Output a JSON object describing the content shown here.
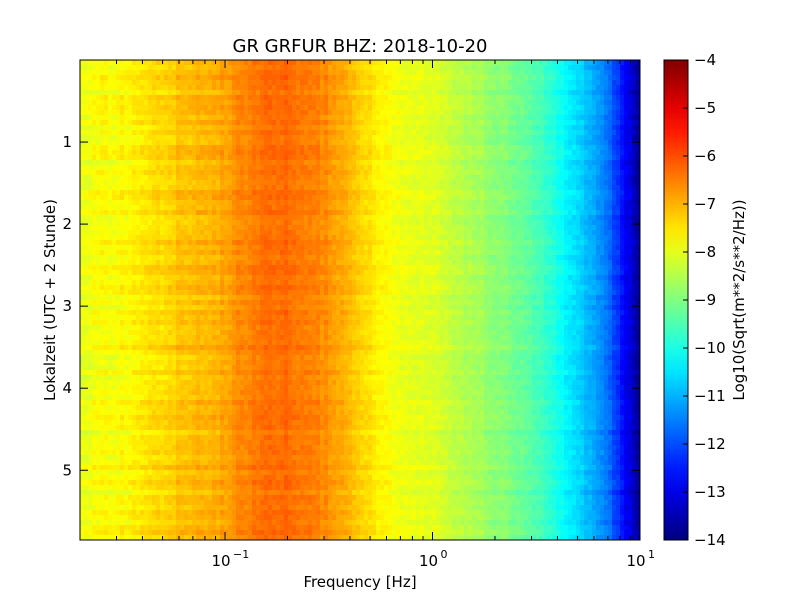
{
  "chart_data": {
    "type": "heatmap",
    "title": "GR GRFUR BHZ: 2018-10-20",
    "xlabel": "Frequency [Hz]",
    "ylabel": "Lokalzeit (UTC + 2 Stunde)",
    "x_scale": "log",
    "xlim": [
      0.02,
      10
    ],
    "ylim": [
      5.85,
      0
    ],
    "x_ticks": [
      {
        "value": 0.1,
        "base": "10",
        "exp": "-1"
      },
      {
        "value": 1,
        "base": "10",
        "exp": "0"
      },
      {
        "value": 10,
        "base": "10",
        "exp": "1"
      }
    ],
    "y_ticks": [
      {
        "value": 1,
        "label": "1"
      },
      {
        "value": 2,
        "label": "2"
      },
      {
        "value": 3,
        "label": "3"
      },
      {
        "value": 4,
        "label": "4"
      },
      {
        "value": 5,
        "label": "5"
      }
    ],
    "colorbar": {
      "label": "Log10(Sqrt(m**2/s**2/Hz))",
      "range": [
        -14,
        -4
      ],
      "colormap": "jet",
      "ticks": [
        {
          "value": -4,
          "label": "−4"
        },
        {
          "value": -5,
          "label": "−5"
        },
        {
          "value": -6,
          "label": "−6"
        },
        {
          "value": -7,
          "label": "−7"
        },
        {
          "value": -8,
          "label": "−8"
        },
        {
          "value": -9,
          "label": "−9"
        },
        {
          "value": -10,
          "label": "−10"
        },
        {
          "value": -11,
          "label": "−11"
        },
        {
          "value": -12,
          "label": "−12"
        },
        {
          "value": -13,
          "label": "−13"
        },
        {
          "value": -14,
          "label": "−14"
        }
      ]
    },
    "spectrum_profile": {
      "frequency_hz": [
        0.02,
        0.04,
        0.06,
        0.09,
        0.12,
        0.16,
        0.2,
        0.3,
        0.45,
        0.6,
        1.0,
        1.5,
        2.5,
        3.5,
        5.0,
        7.0,
        8.5,
        10.0
      ],
      "value": [
        -7.9,
        -7.6,
        -7.2,
        -7.0,
        -6.6,
        -6.3,
        -6.3,
        -6.6,
        -7.3,
        -7.8,
        -8.1,
        -8.5,
        -9.1,
        -9.7,
        -10.6,
        -11.6,
        -12.8,
        -13.8
      ]
    }
  }
}
